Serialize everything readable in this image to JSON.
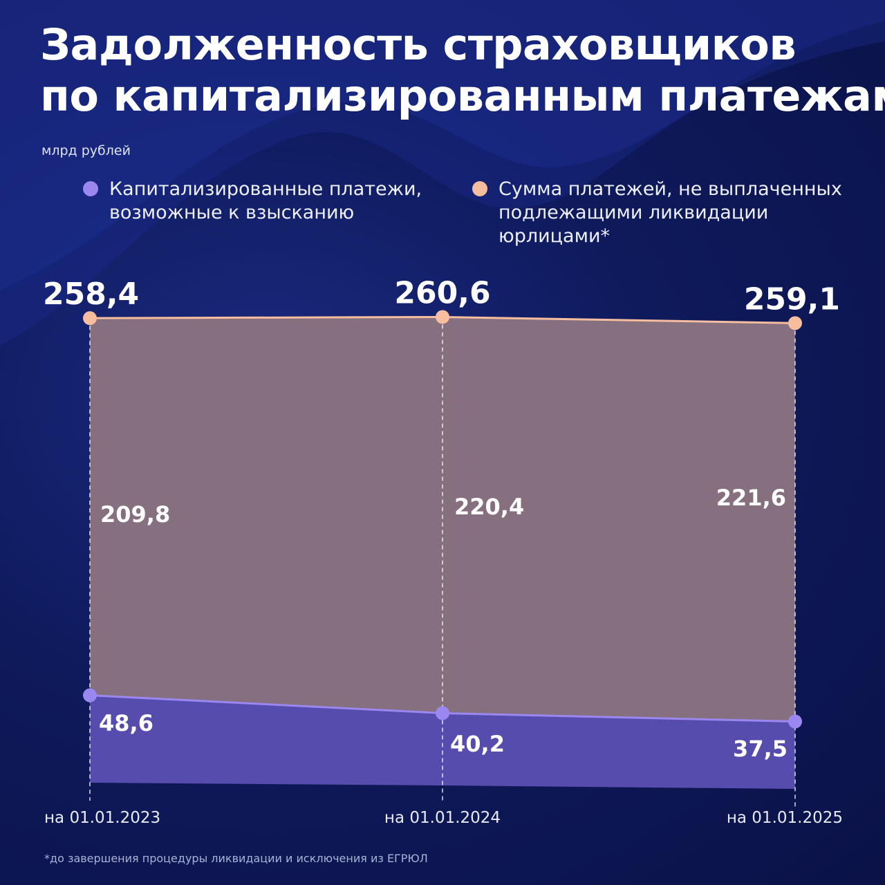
{
  "title_line1": "Задолженность страховщиков",
  "title_line2": "по капитализированным платежам",
  "unit": "млрд рублей",
  "legend": [
    {
      "label": "Капитализированные платежи,\nвозможные к взысканию",
      "color": "#9b87f0"
    },
    {
      "label": "Сумма платежей, не выплаченных\nподлежащими ликвидации\nюрлицами*",
      "color": "#f6bd9f"
    }
  ],
  "footnote": "*до завершения процедуры ликвидации и исключения из ЕГРЮЛ",
  "colors": {
    "lower_fill": "#5a4fb3",
    "upper_fill": "#8a7380",
    "lower_line": "#9b87f0",
    "total_line": "#f6bd9f"
  },
  "chart_data": {
    "type": "area",
    "stacked": true,
    "categories": [
      "на 01.01.2023",
      "на 01.01.2024",
      "на 01.01.2025"
    ],
    "series": [
      {
        "name": "Капитализированные платежи, возможные к взысканию",
        "values": [
          48.6,
          40.2,
          37.5
        ],
        "labels": [
          "48,6",
          "40,2",
          "37,5"
        ]
      },
      {
        "name": "Сумма платежей, не выплаченных подлежащими ликвидации юрлицами*",
        "values": [
          209.8,
          220.4,
          221.6
        ],
        "labels": [
          "209,8",
          "220,4",
          "221,6"
        ]
      }
    ],
    "totals": [
      258.4,
      260.6,
      259.1
    ],
    "total_labels": [
      "258,4",
      "260,6",
      "259,1"
    ],
    "ylabel": "млрд рублей",
    "grid": false
  }
}
